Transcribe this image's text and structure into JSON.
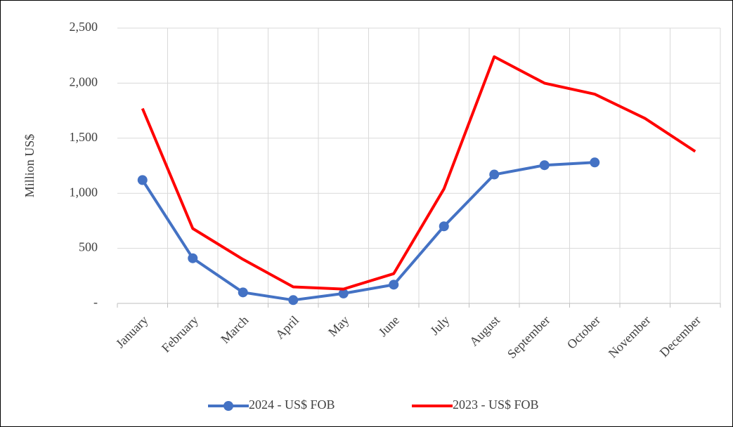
{
  "chart_data": {
    "type": "line",
    "y_label": "Million US$",
    "categories": [
      "January",
      "February",
      "March",
      "April",
      "May",
      "June",
      "July",
      "August",
      "September",
      "October",
      "November",
      "December"
    ],
    "series": [
      {
        "name": "2024 - US$ FOB",
        "color": "#4472c4",
        "markers": true,
        "values": [
          1120,
          410,
          100,
          30,
          90,
          170,
          700,
          1170,
          1255,
          1280,
          null,
          null
        ]
      },
      {
        "name": "2023 - US$ FOB",
        "color": "#ff0000",
        "markers": false,
        "values": [
          1770,
          680,
          400,
          150,
          130,
          270,
          1040,
          2240,
          2000,
          1900,
          1680,
          1380
        ]
      }
    ],
    "ylim": [
      0,
      2500
    ],
    "yticks": [
      {
        "value": 0,
        "label": "-"
      },
      500,
      {
        "value": 1000,
        "label": "1,000"
      },
      {
        "value": 1500,
        "label": "1,500"
      },
      {
        "value": 2000,
        "label": "2,000"
      },
      {
        "value": 2500,
        "label": "2,500"
      }
    ],
    "grid": true,
    "legend": "bottom"
  }
}
